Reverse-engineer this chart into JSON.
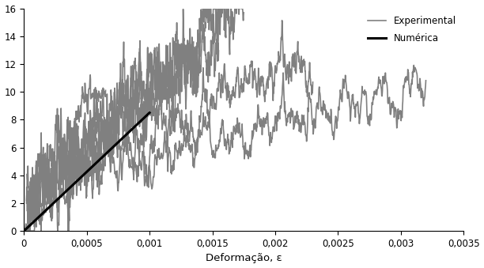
{
  "title": "",
  "xlabel": "Deformação, ε",
  "ylabel": "",
  "xlim": [
    0,
    0.0035
  ],
  "ylim": [
    0,
    16
  ],
  "yticks": [
    0,
    2,
    4,
    6,
    8,
    10,
    12,
    14,
    16
  ],
  "xticks": [
    0,
    0.0005,
    0.001,
    0.0015,
    0.002,
    0.0025,
    0.003,
    0.0035
  ],
  "xtick_labels": [
    "0",
    "0,0005",
    "0,001",
    "0,0015",
    "0,002",
    "0,0025",
    "0,003",
    "0,0035"
  ],
  "experimental_color": "#808080",
  "numerical_color": "#000000",
  "legend_experimental": "Experimental",
  "legend_numerical": "Numérica",
  "background_color": "#ffffff",
  "numerical_line": {
    "x": [
      0,
      0.001
    ],
    "y": [
      0,
      8.5
    ]
  }
}
